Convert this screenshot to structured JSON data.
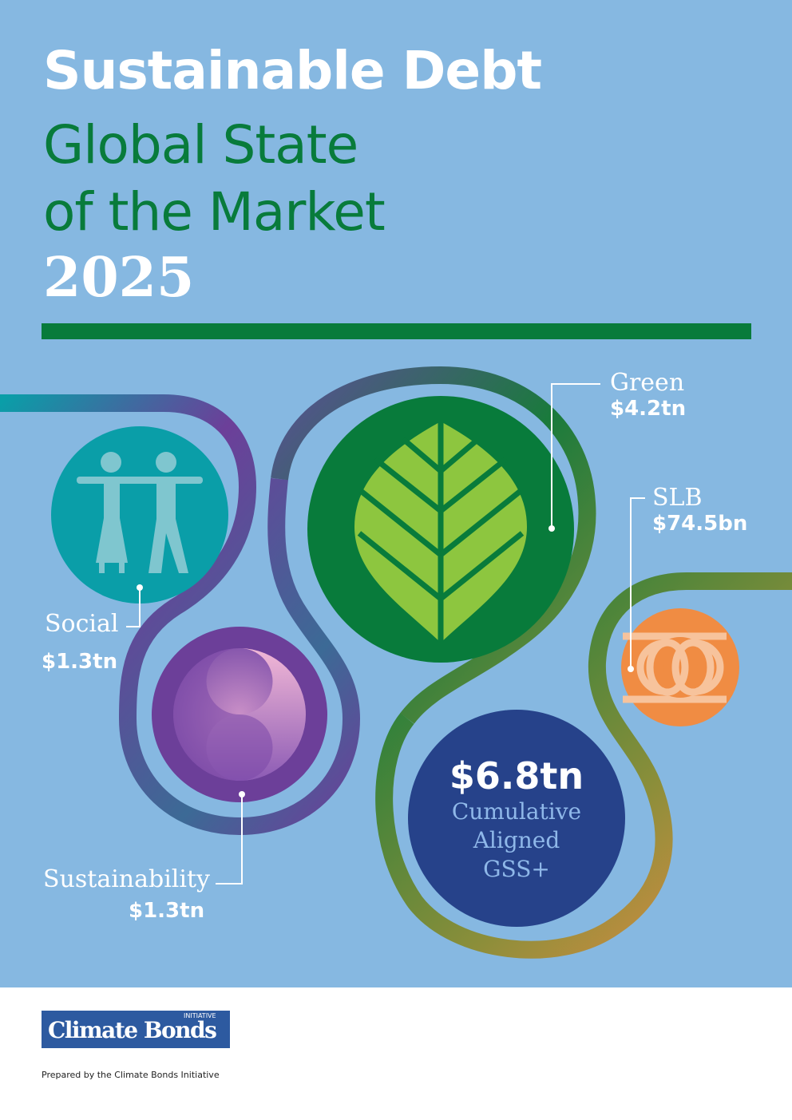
{
  "title": {
    "line1": "Sustainable Debt",
    "line2": "Global State",
    "line3": "of the Market",
    "year": "2025"
  },
  "categories": {
    "green": {
      "name": "Green",
      "value": "$4.2tn"
    },
    "slb": {
      "name": "SLB",
      "value": "$74.5bn"
    },
    "social": {
      "name": "Social",
      "value": "$1.3tn"
    },
    "sustainability": {
      "name": "Sustainability",
      "value": "$1.3tn"
    }
  },
  "cumulative": {
    "value": "$6.8tn",
    "line1": "Cumulative",
    "line2": "Aligned",
    "line3": "GSS+"
  },
  "logo": {
    "name": "Climate Bonds",
    "sub": "INITIATIVE"
  },
  "footer": {
    "prepared_by": "Prepared by the Climate Bonds Initiative"
  },
  "colors": {
    "background": "#86b8e1",
    "green_dark": "#087b3b",
    "leaf": "#8dc63f",
    "teal": "#0a9ea8",
    "purple": "#6c3f99",
    "orange": "#f08c43",
    "navy": "#26428a"
  },
  "icons": [
    "people-icon",
    "leaf-icon",
    "yin-yang-icon",
    "chain-link-icon"
  ]
}
